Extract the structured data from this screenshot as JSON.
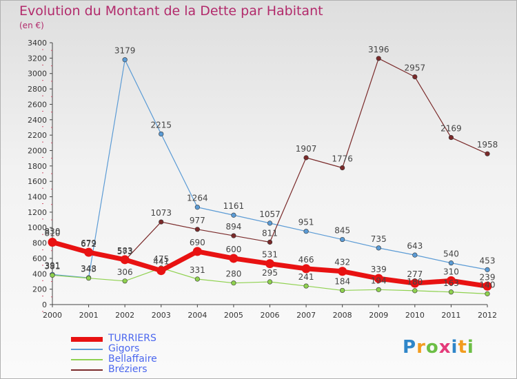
{
  "header": {
    "title": "Evolution du Montant de la Dette par Habitant",
    "subtitle": "(en €)"
  },
  "logo_text": "Proxiti",
  "chart_data": {
    "type": "line",
    "x": [
      "2000",
      "2001",
      "2002",
      "2003",
      "2004",
      "2005",
      "2006",
      "2007",
      "2008",
      "2009",
      "2010",
      "2011",
      "2012"
    ],
    "ylim": [
      0,
      3400
    ],
    "yticks": [
      0,
      200,
      400,
      600,
      800,
      1000,
      1200,
      1400,
      1600,
      1800,
      2000,
      2200,
      2400,
      2600,
      2800,
      3000,
      3200,
      3400
    ],
    "grid": false,
    "legend_position": "bottom-left",
    "series": [
      {
        "name": "TURRIERS",
        "color": "#e81212",
        "values": [
          810,
          679,
          583,
          441,
          690,
          600,
          531,
          466,
          432,
          339,
          277,
          310,
          239
        ],
        "labels": [
          "810",
          "679",
          "583",
          "441",
          "690",
          "600",
          "531",
          "466",
          "432",
          "339",
          "277",
          "310",
          "239"
        ]
      },
      {
        "name": "Gigors",
        "color": "#5b9bd5",
        "values": [
          391,
          348,
          3179,
          2215,
          1264,
          1161,
          1057,
          951,
          845,
          735,
          643,
          540,
          453
        ],
        "labels": [
          "391",
          "348",
          "3179",
          "2215",
          "1264",
          "1161",
          "1057",
          "951",
          "845",
          "735",
          "643",
          "540",
          "453"
        ]
      },
      {
        "name": "Bellaffaire",
        "color": "#8fd14f",
        "values": [
          381,
          343,
          306,
          475,
          331,
          280,
          295,
          241,
          184,
          194,
          180,
          163,
          140
        ],
        "labels": [
          "381",
          "343",
          "306",
          "475",
          "331",
          "280",
          "295",
          "241",
          "184",
          "194",
          "180",
          "163",
          "140"
        ]
      },
      {
        "name": "Bréziers",
        "color": "#7a2a2a",
        "values": [
          830,
          672,
          573,
          1073,
          977,
          894,
          811,
          1907,
          1776,
          3196,
          2957,
          2169,
          1958
        ],
        "labels": [
          "830",
          "672",
          "573",
          "1073",
          "977",
          "894",
          "811",
          "1907",
          "1776",
          "3196",
          "2957",
          "2169",
          "1958"
        ]
      }
    ]
  }
}
